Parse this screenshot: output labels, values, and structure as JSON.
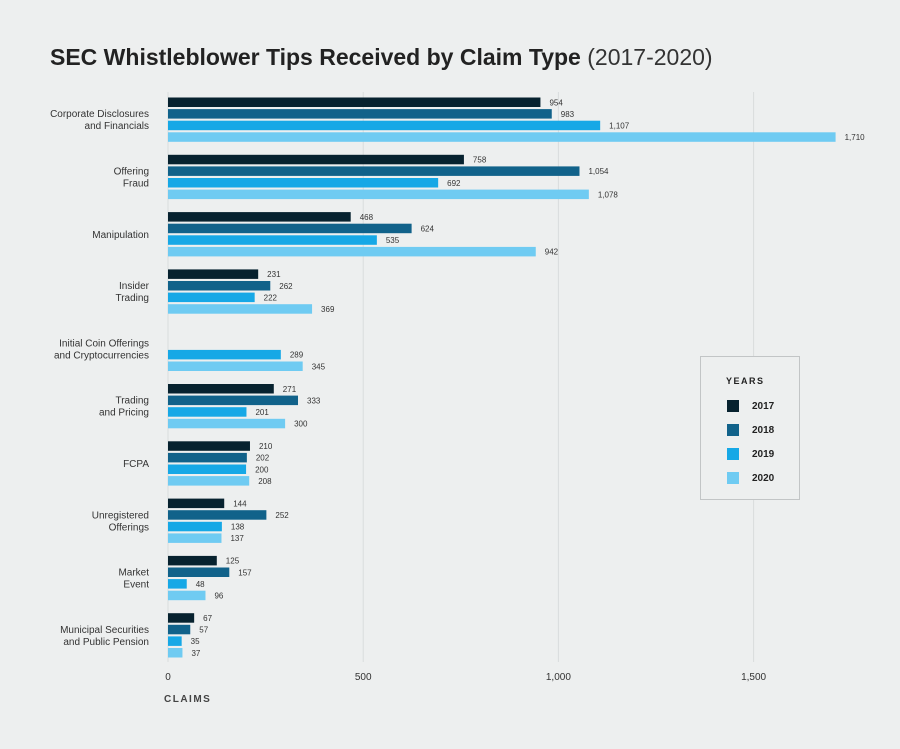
{
  "chart_data": {
    "type": "bar",
    "orientation": "horizontal",
    "title": "SEC Whistleblower Tips Received by Claim Type",
    "subtitle": "(2017-2020)",
    "xlabel": "CLAIMS",
    "ylabel": "",
    "xlim": [
      0,
      1750
    ],
    "xticks": [
      0,
      500,
      1000,
      1500
    ],
    "xtick_labels": [
      "0",
      "500",
      "1,000",
      "1,500"
    ],
    "grid": "vertical",
    "legend_title": "YEARS",
    "legend_position": "right",
    "categories": [
      [
        "Corporate Disclosures",
        "and Financials"
      ],
      [
        "Offering",
        "Fraud"
      ],
      [
        "Manipulation"
      ],
      [
        "Insider",
        "Trading"
      ],
      [
        "Initial Coin Offerings",
        "and Cryptocurrencies"
      ],
      [
        "Trading",
        "and Pricing"
      ],
      [
        "FCPA"
      ],
      [
        "Unregistered",
        "Offerings"
      ],
      [
        "Market",
        "Event"
      ],
      [
        "Municipal Securities",
        "and Public Pension"
      ]
    ],
    "series": [
      {
        "name": "2017",
        "color": "#07222f",
        "values": [
          954,
          758,
          468,
          231,
          null,
          271,
          210,
          144,
          125,
          67
        ],
        "labels": [
          "954",
          "758",
          "468",
          "231",
          "",
          "271",
          "210",
          "144",
          "125",
          "67"
        ]
      },
      {
        "name": "2018",
        "color": "#11628a",
        "values": [
          983,
          1054,
          624,
          262,
          null,
          333,
          202,
          252,
          157,
          57
        ],
        "labels": [
          "983",
          "1,054",
          "624",
          "262",
          "",
          "333",
          "202",
          "252",
          "157",
          "57"
        ]
      },
      {
        "name": "2019",
        "color": "#16a8e6",
        "values": [
          1107,
          692,
          535,
          222,
          289,
          201,
          200,
          138,
          48,
          35
        ],
        "labels": [
          "1,107",
          "692",
          "535",
          "222",
          "289",
          "201",
          "200",
          "138",
          "48",
          "35"
        ]
      },
      {
        "name": "2020",
        "color": "#6fcbf2",
        "values": [
          1710,
          1078,
          942,
          369,
          345,
          300,
          208,
          137,
          96,
          37
        ],
        "labels": [
          "1,710",
          "1,078",
          "942",
          "369",
          "345",
          "300",
          "208",
          "137",
          "96",
          "37"
        ]
      }
    ]
  }
}
